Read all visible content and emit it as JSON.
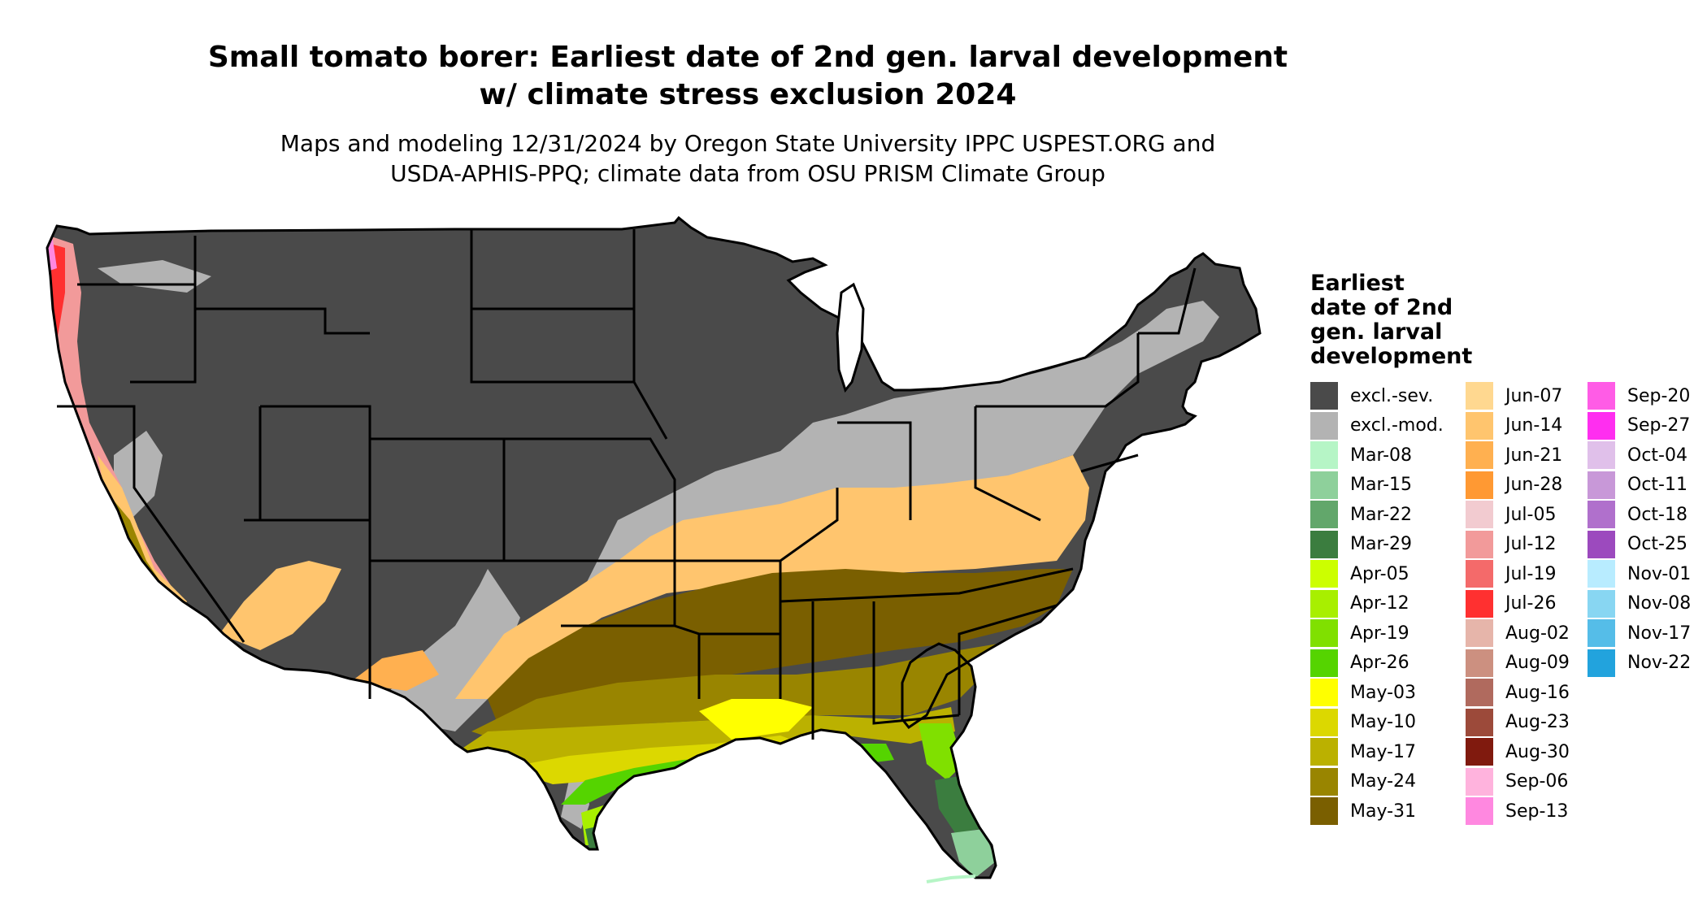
{
  "title_line1": "Small tomato borer: Earliest date of 2nd gen. larval development",
  "title_line2": "w/ climate stress exclusion 2024",
  "subtitle_line1": "Maps and modeling 12/31/2024 by Oregon State University IPPC USPEST.ORG and",
  "subtitle_line2": "USDA-APHIS-PPQ; climate data from OSU PRISM Climate Group",
  "legend": {
    "title": "Earliest\ndate of 2nd\ngen. larval\ndevelopment",
    "items": [
      {
        "label": "excl.-sev.",
        "color": "#4a4a4a"
      },
      {
        "label": "excl.-mod.",
        "color": "#b3b3b3"
      },
      {
        "label": "Mar-08",
        "color": "#b6f5c6"
      },
      {
        "label": "Mar-15",
        "color": "#8ed09b"
      },
      {
        "label": "Mar-22",
        "color": "#62a76b"
      },
      {
        "label": "Mar-29",
        "color": "#3b7d3f"
      },
      {
        "label": "Apr-05",
        "color": "#ccff00"
      },
      {
        "label": "Apr-12",
        "color": "#a8ef00"
      },
      {
        "label": "Apr-19",
        "color": "#80e000"
      },
      {
        "label": "Apr-26",
        "color": "#55d400"
      },
      {
        "label": "May-03",
        "color": "#ffff00"
      },
      {
        "label": "May-10",
        "color": "#dcd800"
      },
      {
        "label": "May-17",
        "color": "#bbb100"
      },
      {
        "label": "May-24",
        "color": "#998500"
      },
      {
        "label": "May-31",
        "color": "#7a5f00"
      },
      {
        "label": "Jun-07",
        "color": "#ffd890"
      },
      {
        "label": "Jun-14",
        "color": "#ffc56e"
      },
      {
        "label": "Jun-21",
        "color": "#ffb050"
      },
      {
        "label": "Jun-28",
        "color": "#ff9933"
      },
      {
        "label": "Jul-05",
        "color": "#f2cbd0"
      },
      {
        "label": "Jul-12",
        "color": "#f29a9a"
      },
      {
        "label": "Jul-19",
        "color": "#f46a6a"
      },
      {
        "label": "Jul-26",
        "color": "#ff3030"
      },
      {
        "label": "Aug-02",
        "color": "#e6b5aa"
      },
      {
        "label": "Aug-09",
        "color": "#cc9080"
      },
      {
        "label": "Aug-16",
        "color": "#b06a5e"
      },
      {
        "label": "Aug-23",
        "color": "#9c4a3a"
      },
      {
        "label": "Aug-30",
        "color": "#801a0e"
      },
      {
        "label": "Sep-06",
        "color": "#ffb3dd"
      },
      {
        "label": "Sep-13",
        "color": "#ff88e0"
      },
      {
        "label": "Sep-20",
        "color": "#ff5ce6"
      },
      {
        "label": "Sep-27",
        "color": "#ff2ef0"
      },
      {
        "label": "Oct-04",
        "color": "#e0c0ea"
      },
      {
        "label": "Oct-11",
        "color": "#c898d8"
      },
      {
        "label": "Oct-18",
        "color": "#b070cc"
      },
      {
        "label": "Oct-25",
        "color": "#9c4abe"
      },
      {
        "label": "Nov-01",
        "color": "#b8ecff"
      },
      {
        "label": "Nov-08",
        "color": "#88d6f2"
      },
      {
        "label": "Nov-17",
        "color": "#55bde8"
      },
      {
        "label": "Nov-22",
        "color": "#22a3dd"
      }
    ]
  }
}
